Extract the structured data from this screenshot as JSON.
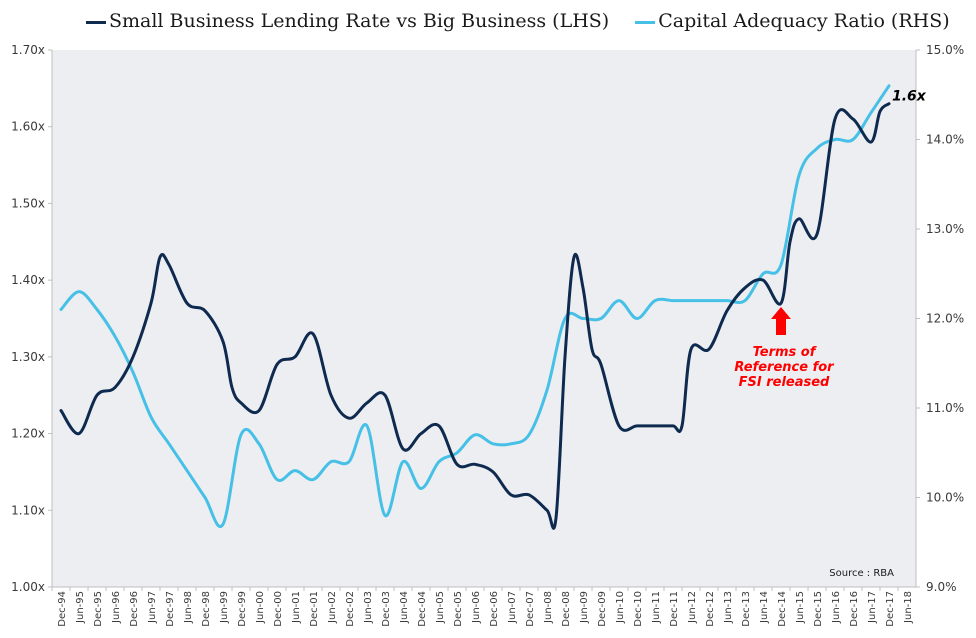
{
  "chart_data": {
    "type": "line",
    "title": "",
    "xlabel": "",
    "ylabel": "",
    "ylim": [
      1.0,
      1.7
    ],
    "y2lim": [
      0.09,
      0.15
    ],
    "y_tick_labels": [
      "1.00x",
      "1.10x",
      "1.20x",
      "1.30x",
      "1.40x",
      "1.50x",
      "1.60x",
      "1.70x"
    ],
    "y2_tick_labels": [
      "9.0%",
      "10.0%",
      "11.0%",
      "12.0%",
      "13.0%",
      "14.0%",
      "15.0%"
    ],
    "x_tick_labels": [
      "Dec-94",
      "Jun-95",
      "Dec-95",
      "Jun-96",
      "Dec-96",
      "Jun-97",
      "Dec-97",
      "Jun-98",
      "Dec-98",
      "Jun-99",
      "Dec-99",
      "Jun-00",
      "Dec-00",
      "Jun-01",
      "Dec-01",
      "Jun-02",
      "Dec-02",
      "Jun-03",
      "Dec-03",
      "Jun-04",
      "Dec-04",
      "Jun-05",
      "Dec-05",
      "Jun-06",
      "Dec-06",
      "Jun-07",
      "Dec-07",
      "Jun-08",
      "Dec-08",
      "Jun-09",
      "Dec-09",
      "Jun-10",
      "Dec-10",
      "Jun-11",
      "Dec-11",
      "Jun-12",
      "Dec-12",
      "Jun-13",
      "Dec-13",
      "Jun-14",
      "Dec-14",
      "Jun-15",
      "Dec-15",
      "Jun-16",
      "Dec-16",
      "Jun-17",
      "Dec-17",
      "Jun-18"
    ],
    "grid": false,
    "legend_position": "top",
    "series": [
      {
        "name": "Small Business Lending Rate vs Big Business (LHS)",
        "axis": "left",
        "color": "#0f2a4f",
        "x": [
          "Dec-94",
          "Jun-95",
          "Dec-95",
          "Jun-96",
          "Dec-96",
          "Jun-97",
          "Sep-97",
          "Dec-97",
          "Jun-98",
          "Dec-98",
          "Jun-99",
          "Sep-99",
          "Dec-99",
          "Jun-00",
          "Dec-00",
          "Jun-01",
          "Dec-01",
          "Jun-02",
          "Dec-02",
          "Jun-03",
          "Dec-03",
          "Jun-04",
          "Dec-04",
          "Jun-05",
          "Dec-05",
          "Jun-06",
          "Dec-06",
          "Jun-07",
          "Dec-07",
          "Jun-08",
          "Sep-08",
          "Dec-08",
          "Mar-09",
          "Jun-09",
          "Sep-09",
          "Dec-09",
          "Jun-10",
          "Dec-10",
          "Jun-11",
          "Dec-11",
          "Mar-12",
          "Jun-12",
          "Dec-12",
          "Jun-13",
          "Dec-13",
          "Jun-14",
          "Dec-14",
          "Mar-15",
          "Jun-15",
          "Dec-15",
          "Jun-16",
          "Dec-16",
          "Jun-17",
          "Sep-17",
          "Dec-17"
        ],
        "values": [
          1.23,
          1.2,
          1.25,
          1.26,
          1.3,
          1.37,
          1.43,
          1.42,
          1.37,
          1.36,
          1.32,
          1.26,
          1.24,
          1.23,
          1.29,
          1.3,
          1.33,
          1.25,
          1.22,
          1.24,
          1.25,
          1.18,
          1.2,
          1.21,
          1.16,
          1.16,
          1.15,
          1.12,
          1.12,
          1.1,
          1.09,
          1.3,
          1.43,
          1.39,
          1.31,
          1.29,
          1.21,
          1.21,
          1.21,
          1.21,
          1.21,
          1.31,
          1.31,
          1.36,
          1.39,
          1.4,
          1.37,
          1.45,
          1.48,
          1.46,
          1.61,
          1.61,
          1.58,
          1.62,
          1.63
        ]
      },
      {
        "name": "Capital Adequacy Ratio (RHS)",
        "axis": "right",
        "color": "#46c0e6",
        "x": [
          "Dec-94",
          "Jun-95",
          "Dec-95",
          "Jun-96",
          "Dec-96",
          "Jun-97",
          "Dec-97",
          "Jun-98",
          "Dec-98",
          "Jun-99",
          "Dec-99",
          "Jun-00",
          "Dec-00",
          "Jun-01",
          "Dec-01",
          "Jun-02",
          "Dec-02",
          "Jun-03",
          "Dec-03",
          "Jun-04",
          "Dec-04",
          "Jun-05",
          "Dec-05",
          "Jun-06",
          "Dec-06",
          "Jun-07",
          "Dec-07",
          "Jun-08",
          "Dec-08",
          "Jun-09",
          "Dec-09",
          "Jun-10",
          "Dec-10",
          "Jun-11",
          "Dec-11",
          "Jun-12",
          "Dec-12",
          "Jun-13",
          "Dec-13",
          "Jun-14",
          "Dec-14",
          "Jun-15",
          "Dec-15",
          "Jun-16",
          "Dec-16",
          "Jun-17",
          "Dec-17"
        ],
        "values": [
          0.121,
          0.123,
          0.121,
          0.118,
          0.114,
          0.109,
          0.106,
          0.103,
          0.1,
          0.097,
          0.107,
          0.106,
          0.102,
          0.103,
          0.102,
          0.104,
          0.104,
          0.108,
          0.098,
          0.104,
          0.101,
          0.104,
          0.105,
          0.107,
          0.106,
          0.106,
          0.107,
          0.112,
          0.12,
          0.12,
          0.12,
          0.122,
          0.12,
          0.122,
          0.122,
          0.122,
          0.122,
          0.122,
          0.122,
          0.125,
          0.126,
          0.136,
          0.139,
          0.14,
          0.14,
          0.143,
          0.146
        ]
      }
    ],
    "data_labels": [
      {
        "text": "1.6x",
        "series": 0,
        "x": "Dec-17"
      }
    ],
    "annotations": [
      {
        "text_lines": [
          "Terms of",
          "Reference for",
          "FSI released"
        ],
        "x": "Dec-14",
        "color": "#ff0000",
        "arrow": "up"
      }
    ],
    "source": "Source : RBA"
  },
  "colors": {
    "plot_background": "#eceef2",
    "axis": "#bfbfbf",
    "tick_label": "#3a3a3a",
    "annotation": "#ff0000"
  }
}
